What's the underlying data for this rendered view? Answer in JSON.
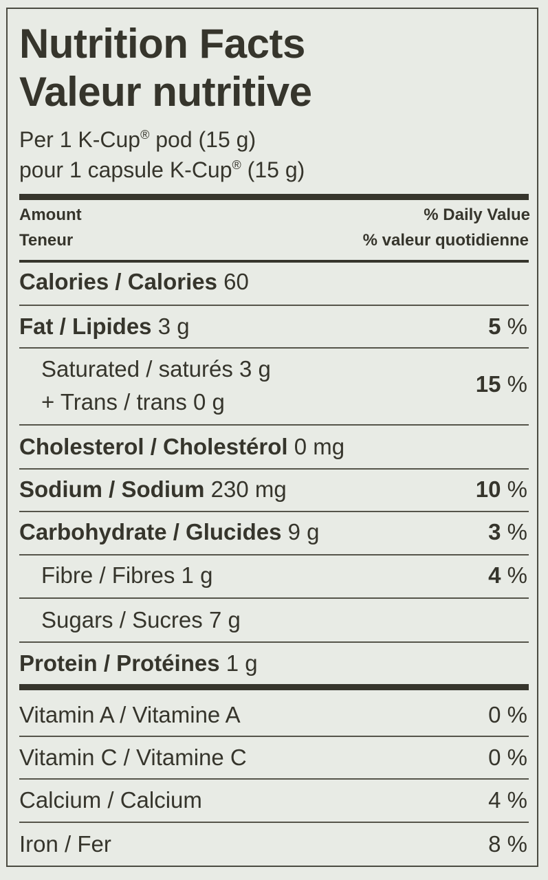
{
  "header": {
    "title_en": "Nutrition Facts",
    "title_fr": "Valeur nutritive",
    "serving_en": "Per 1 K-Cup",
    "serving_en_rest": " pod (15 g)",
    "serving_fr": "pour 1 capsule K-Cup",
    "serving_fr_rest": " (15 g)",
    "registered": "®",
    "amount_en": "Amount",
    "amount_fr": "Teneur",
    "dv_en": "% Daily Value",
    "dv_fr": "% valeur quotidienne"
  },
  "rows": {
    "calories": {
      "label": "Calories / Calories",
      "amount": "60"
    },
    "fat": {
      "label": "Fat / Lipides",
      "amount": "3 g",
      "dv": "5",
      "pct": "%"
    },
    "saturated": {
      "line1": "Saturated / saturés 3 g",
      "line2": "+ Trans / trans 0 g",
      "dv": "15",
      "pct": "%"
    },
    "cholesterol": {
      "label": "Cholesterol / Cholestérol",
      "amount": "0 mg"
    },
    "sodium": {
      "label": "Sodium / Sodium",
      "amount": "230 mg",
      "dv": "10",
      "pct": "%"
    },
    "carbohydrate": {
      "label": "Carbohydrate / Glucides",
      "amount": "9 g",
      "dv": "3",
      "pct": "%"
    },
    "fibre": {
      "label": "Fibre / Fibres 1 g",
      "dv": "4",
      "pct": "%"
    },
    "sugars": {
      "label": "Sugars / Sucres 7 g"
    },
    "protein": {
      "label": "Protein / Protéines",
      "amount": "1 g"
    }
  },
  "vitamins": {
    "vitamin_a": {
      "label": "Vitamin A / Vitamine A",
      "dv": "0 %"
    },
    "vitamin_c": {
      "label": "Vitamin C / Vitamine C",
      "dv": "0 %"
    },
    "calcium": {
      "label": "Calcium / Calcium",
      "dv": "4 %"
    },
    "iron": {
      "label": "Iron / Fer",
      "dv": "8 %"
    }
  }
}
